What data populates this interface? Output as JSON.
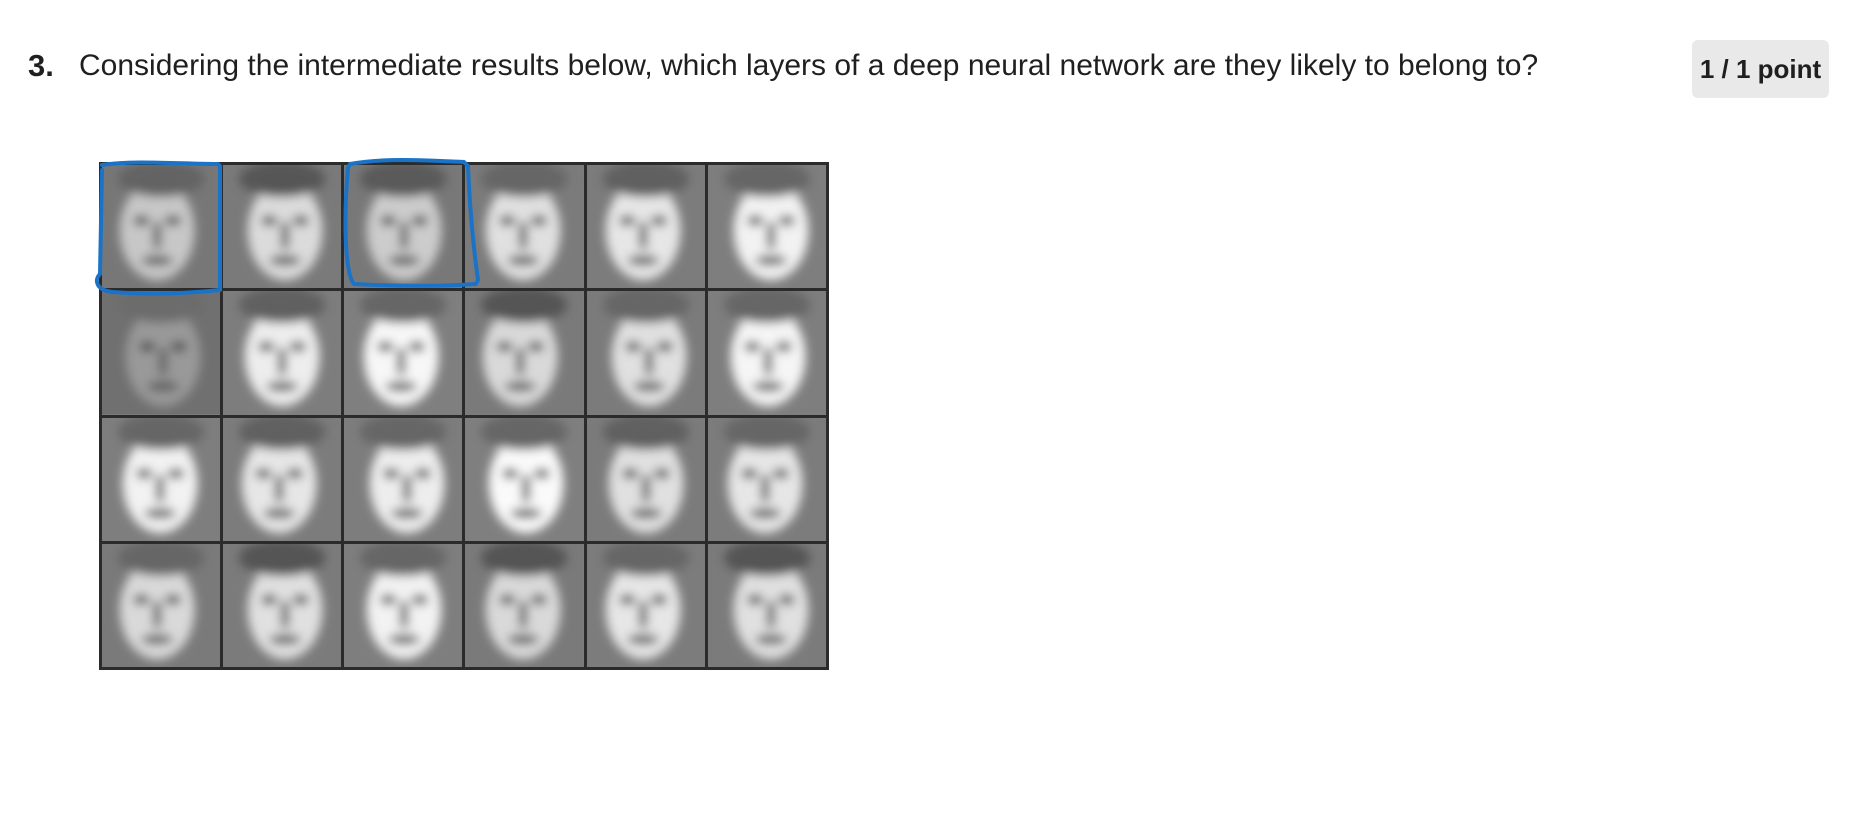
{
  "question": {
    "number": "3.",
    "text": "Considering the intermediate results below, which layers of a deep neural network are they likely to belong to?"
  },
  "score": {
    "label": "1 / 1 point"
  },
  "figure": {
    "grid": {
      "rows": 4,
      "cols": 6,
      "faces": [
        {
          "brightness": 0.78,
          "hair": 0.35
        },
        {
          "brightness": 0.86,
          "hair": 0.55
        },
        {
          "brightness": 0.8,
          "hair": 0.5
        },
        {
          "brightness": 0.88,
          "hair": 0.3
        },
        {
          "brightness": 0.9,
          "hair": 0.4
        },
        {
          "brightness": 0.95,
          "hair": 0.3
        },
        {
          "brightness": 0.6,
          "hair": 0.2
        },
        {
          "brightness": 0.93,
          "hair": 0.4
        },
        {
          "brightness": 0.97,
          "hair": 0.3
        },
        {
          "brightness": 0.85,
          "hair": 0.6
        },
        {
          "brightness": 0.88,
          "hair": 0.3
        },
        {
          "brightness": 0.96,
          "hair": 0.3
        },
        {
          "brightness": 0.95,
          "hair": 0.3
        },
        {
          "brightness": 0.9,
          "hair": 0.4
        },
        {
          "brightness": 0.93,
          "hair": 0.3
        },
        {
          "brightness": 0.98,
          "hair": 0.3
        },
        {
          "brightness": 0.88,
          "hair": 0.4
        },
        {
          "brightness": 0.9,
          "hair": 0.3
        },
        {
          "brightness": 0.85,
          "hair": 0.3
        },
        {
          "brightness": 0.88,
          "hair": 0.6
        },
        {
          "brightness": 0.95,
          "hair": 0.3
        },
        {
          "brightness": 0.85,
          "hair": 0.6
        },
        {
          "brightness": 0.9,
          "hair": 0.3
        },
        {
          "brightness": 0.88,
          "hair": 0.6
        }
      ]
    },
    "highlight_color": "#1a73c7",
    "highlighted_cells": [
      0,
      2
    ]
  }
}
